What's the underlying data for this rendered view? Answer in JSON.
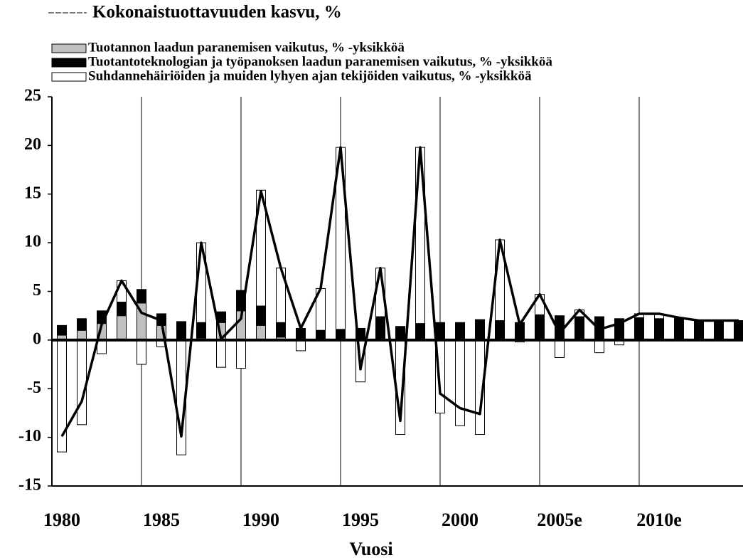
{
  "chart_data": {
    "type": "bar",
    "x_label": "Vuosi",
    "categories": [
      "1980",
      null,
      null,
      null,
      null,
      "1985",
      null,
      null,
      null,
      null,
      "1990",
      null,
      null,
      null,
      null,
      "1995",
      null,
      null,
      null,
      null,
      "2000",
      null,
      null,
      null,
      null,
      "2005e",
      null,
      null,
      null,
      null,
      "2010e",
      null,
      null,
      null,
      null
    ],
    "series": [
      {
        "name": "Kokonaistuottavuuden kasvu, %",
        "type": "line",
        "color": "#000000",
        "values": [
          -9.9,
          -6.3,
          1.6,
          6.1,
          2.8,
          2.0,
          -9.9,
          10.0,
          0.1,
          2.2,
          15.3,
          7.4,
          1.2,
          5.3,
          19.8,
          -3.0,
          7.4,
          -8.3,
          19.8,
          -5.5,
          -7.0,
          -7.6,
          10.3,
          1.6,
          4.7,
          0.7,
          3.1,
          1.1,
          1.7,
          2.7,
          2.7,
          2.3,
          2.0,
          2.0,
          2.0
        ]
      },
      {
        "name": "Tuotannon laadun paranemisen vaikutus, % -yksikköä",
        "color": "#c0c0c0",
        "values": [
          0.5,
          1.0,
          1.7,
          2.5,
          3.8,
          1.5,
          0,
          0.2,
          1.8,
          3.0,
          1.5,
          0.3,
          0,
          0,
          0,
          0,
          0,
          0,
          0,
          0,
          0,
          0,
          0,
          0,
          0,
          0,
          0,
          0,
          0,
          0,
          0,
          0,
          0,
          0,
          0
        ]
      },
      {
        "name": "Tuotantoteknologian ja työpanoksen laadun paranemisen vaikutus, % -yksikköä",
        "color": "#000000",
        "values": [
          1.0,
          1.2,
          1.3,
          1.4,
          1.4,
          1.2,
          1.9,
          1.6,
          1.1,
          2.1,
          2.0,
          1.5,
          1.2,
          1.0,
          1.1,
          1.2,
          2.4,
          1.4,
          1.7,
          1.8,
          1.8,
          2.1,
          2.0,
          1.8,
          2.6,
          2.5,
          2.4,
          2.4,
          2.2,
          2.3,
          2.2,
          2.3,
          2.0,
          2.0,
          2.0
        ]
      },
      {
        "name": "Suhdannehäiriöiden ja muiden lyhyen ajan tekijöiden vaikutus, % -yksikköä",
        "color": "#ffffff",
        "values": [
          -11.5,
          -8.7,
          -1.4,
          2.2,
          -2.5,
          -0.7,
          -11.8,
          8.2,
          -2.8,
          -2.9,
          11.9,
          5.6,
          -1.1,
          4.3,
          18.7,
          -4.3,
          5.0,
          -9.7,
          18.1,
          -7.5,
          -8.8,
          -9.7,
          8.3,
          -0.2,
          2.1,
          -1.8,
          0.7,
          -1.3,
          -0.5,
          0.4,
          0.5,
          0,
          0,
          0,
          0
        ]
      }
    ],
    "ylim": [
      -15,
      25
    ],
    "yticks": [
      25,
      20,
      15,
      10,
      5,
      0,
      -5,
      -10,
      -15
    ],
    "grid": true
  }
}
